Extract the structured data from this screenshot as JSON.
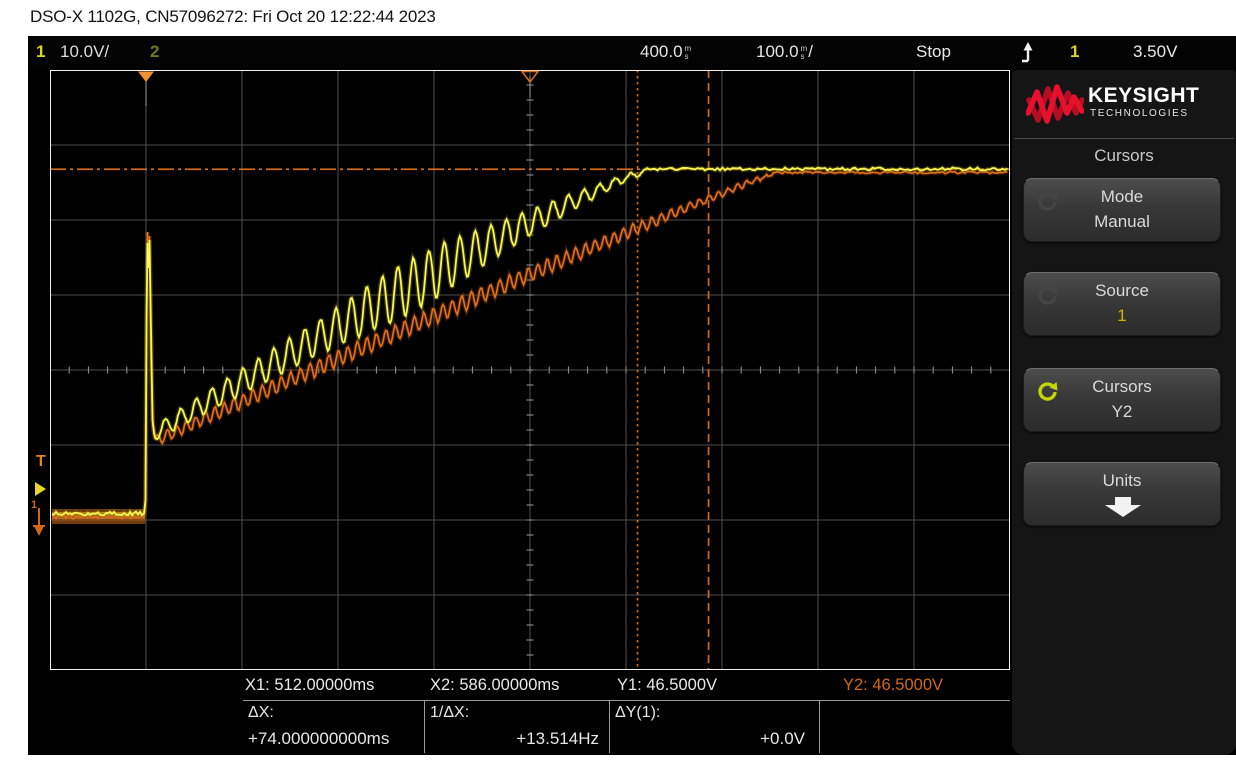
{
  "title": "DSO-X 1102G, CN57096272: Fri Oct 20 12:22:44 2023",
  "status_bar": {
    "ch1_number": "1",
    "ch1_scale": "10.0V/",
    "ch2_number": "2",
    "delay": {
      "value": "400.0",
      "unit_top": "m",
      "unit_bottom": "s"
    },
    "timebase": {
      "value": "100.0",
      "unit_top": "m",
      "unit_bottom": "s",
      "suffix": "/"
    },
    "acquisition": "Stop",
    "trigger": {
      "icon": "rising-edge-icon",
      "source": "1",
      "level": "3.50V"
    }
  },
  "display": {
    "left_markers": {
      "trigger_label": "T",
      "ground_channel": "1"
    },
    "cursor_readout": [
      {
        "label": "X1:",
        "value": "512.00000ms"
      },
      {
        "label": "X2:",
        "value": "586.00000ms"
      },
      {
        "label": "Y1:",
        "value": "46.5000V"
      },
      {
        "label": "Y2:",
        "value": "46.5000V"
      }
    ],
    "delta_readout": [
      {
        "label": "ΔX:",
        "value": "+74.000000000ms"
      },
      {
        "label": "1/ΔX:",
        "value": "+13.514Hz"
      },
      {
        "label": "ΔY(1):",
        "value": "+0.0V"
      },
      {
        "label": "",
        "value": ""
      }
    ]
  },
  "side_panel": {
    "brand": {
      "name": "KEYSIGHT",
      "sub": "TECHNOLOGIES",
      "logo_color": "#e8112d"
    },
    "menu_title": "Cursors",
    "buttons": [
      {
        "label": "Mode",
        "value": "Manual",
        "icon": "rotary-knob-icon",
        "icon_color": "#454545",
        "value_color": "#d9d9d9"
      },
      {
        "label": "Source",
        "value": "1",
        "icon": "rotary-knob-icon",
        "icon_color": "#454545",
        "value_color": "#d2b400"
      },
      {
        "label": "Cursors",
        "value": "Y2",
        "icon": "rotary-knob-icon",
        "icon_color": "#c3d503",
        "value_color": "#d9d9d9"
      },
      {
        "label": "Units",
        "value": "",
        "icon": "down-arrow-icon",
        "icon_color": "#f2f2f2",
        "value_color": "#d9d9d9"
      }
    ]
  },
  "colors": {
    "ch1_trace": "#e8e832",
    "ch2_trace": "#c05a14",
    "cursor_line": "#cf6a1a",
    "grid_line": "#4f4f4f",
    "grid_tick": "#9a9a9a",
    "border": "#f0f0f0",
    "y2_text": "#d06818"
  },
  "chart_data": {
    "type": "line",
    "title": "Oscilloscope step response with cursors",
    "x_axis": {
      "units": "ms",
      "ms_per_div": 100,
      "delay_ms": 400,
      "divisions": 10,
      "range_ms": [
        -100,
        900
      ]
    },
    "y_axis": {
      "units": "V",
      "volts_per_div_ch1": 10,
      "divisions": 8
    },
    "series": [
      {
        "name": "channel-1",
        "color": "#e8e832",
        "description": "0V baseline until t=0; narrow spike to ~38V; drops to ~12V then oscillating ramp (growing then shrinking ringing) settling at 46.5V by t=510ms"
      },
      {
        "name": "channel-2",
        "color": "#c05a14",
        "description": "0V baseline until t=0; narrow spike to ~38V; smoother small-ripple ramp lagging channel 1, settling at 46.5V by t=660ms"
      }
    ],
    "cursors": {
      "x1_ms": 512,
      "x2_ms": 586,
      "y1_v": 46.5,
      "y2_v": 46.5,
      "dx_ms": 74,
      "inv_dx_hz": 13.514,
      "dy_v": 0,
      "trigger_level_v": 3.5
    }
  }
}
